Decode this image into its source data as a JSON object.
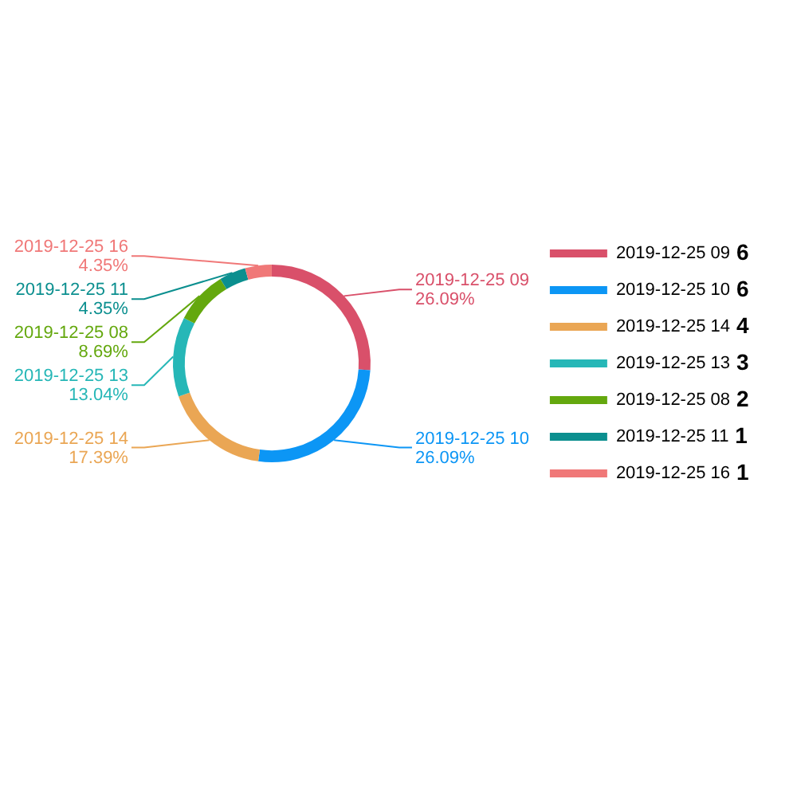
{
  "chart_data": {
    "type": "donut",
    "categories": [
      "2019-12-25 09",
      "2019-12-25 10",
      "2019-12-25 14",
      "2019-12-25 13",
      "2019-12-25 08",
      "2019-12-25 11",
      "2019-12-25 16"
    ],
    "values": [
      26.09,
      26.09,
      17.39,
      13.04,
      8.69,
      4.35,
      4.35
    ],
    "annotations": [
      "6",
      "6",
      "4",
      "3",
      "2",
      "1",
      "1"
    ],
    "colors": [
      "#d9506a",
      "#0c96f5",
      "#eaa654",
      "#26b7b7",
      "#64a80e",
      "#0b8f8f",
      "#f07878"
    ],
    "value_labels": [
      "26.09%",
      "26.09%",
      "17.39%",
      "13.04%",
      "8.69%",
      "4.35%",
      "4.35%"
    ],
    "legend": "right"
  }
}
